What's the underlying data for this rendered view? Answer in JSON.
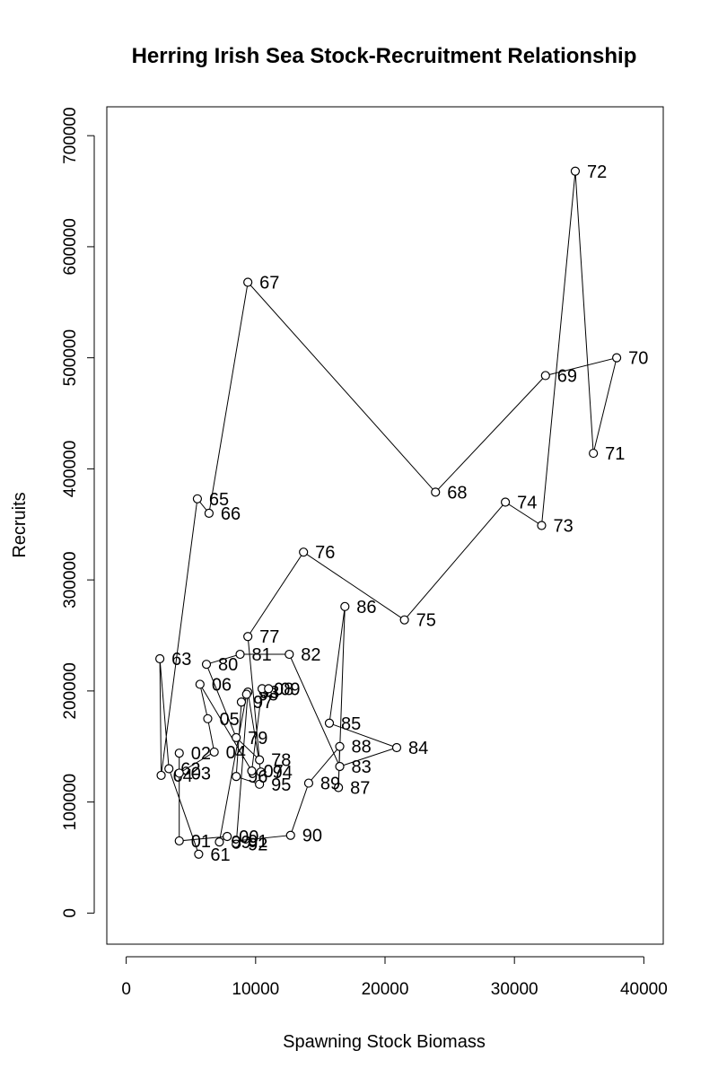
{
  "chart_data": {
    "type": "scatter",
    "title": "Herring Irish Sea Stock-Recruitment Relationship",
    "xlabel": "Spawning Stock Biomass",
    "ylabel": "Recruits",
    "xlim": [
      -1500,
      41500
    ],
    "ylim": [
      -28000,
      726000
    ],
    "x_ticks": [
      0,
      10000,
      20000,
      30000,
      40000
    ],
    "x_tick_labels": [
      "0",
      "10000",
      "20000",
      "30000",
      "40000"
    ],
    "y_ticks": [
      0,
      100000,
      200000,
      300000,
      400000,
      500000,
      600000,
      700000
    ],
    "y_tick_labels": [
      "0",
      "100000",
      "200000",
      "300000",
      "400000",
      "500000",
      "600000",
      "700000"
    ],
    "grid": false,
    "connected": true,
    "point_marker": "open-circle",
    "points": [
      {
        "label": "61",
        "x": 5600,
        "y": 53000
      },
      {
        "label": "62",
        "x": 3300,
        "y": 130000
      },
      {
        "label": "63",
        "x": 2600,
        "y": 229000
      },
      {
        "label": "64",
        "x": 2700,
        "y": 124000
      },
      {
        "label": "65",
        "x": 5500,
        "y": 373000
      },
      {
        "label": "66",
        "x": 6400,
        "y": 360000
      },
      {
        "label": "67",
        "x": 9400,
        "y": 568000
      },
      {
        "label": "68",
        "x": 23900,
        "y": 379000
      },
      {
        "label": "69",
        "x": 32400,
        "y": 484000
      },
      {
        "label": "70",
        "x": 37900,
        "y": 500000
      },
      {
        "label": "71",
        "x": 36100,
        "y": 414000
      },
      {
        "label": "72",
        "x": 34700,
        "y": 668000
      },
      {
        "label": "73",
        "x": 32100,
        "y": 349000
      },
      {
        "label": "74",
        "x": 29300,
        "y": 370000
      },
      {
        "label": "75",
        "x": 21500,
        "y": 264000
      },
      {
        "label": "76",
        "x": 13700,
        "y": 325000
      },
      {
        "label": "77",
        "x": 9400,
        "y": 249000
      },
      {
        "label": "78",
        "x": 10300,
        "y": 138000
      },
      {
        "label": "79",
        "x": 8500,
        "y": 158000
      },
      {
        "label": "80",
        "x": 6200,
        "y": 224000
      },
      {
        "label": "81",
        "x": 8800,
        "y": 233000
      },
      {
        "label": "82",
        "x": 12600,
        "y": 233000
      },
      {
        "label": "83",
        "x": 16500,
        "y": 132000
      },
      {
        "label": "84",
        "x": 20900,
        "y": 149000
      },
      {
        "label": "85",
        "x": 15700,
        "y": 171000
      },
      {
        "label": "86",
        "x": 16900,
        "y": 276000
      },
      {
        "label": "87",
        "x": 16400,
        "y": 113000
      },
      {
        "label": "88",
        "x": 16500,
        "y": 150000
      },
      {
        "label": "89",
        "x": 14100,
        "y": 117000
      },
      {
        "label": "90",
        "x": 12700,
        "y": 70000
      },
      {
        "label": "91",
        "x": 8500,
        "y": 65000
      },
      {
        "label": "92",
        "x": 8500,
        "y": 62000
      },
      {
        "label": "93",
        "x": 9400,
        "y": 199000
      },
      {
        "label": "94",
        "x": 10400,
        "y": 127000
      },
      {
        "label": "95",
        "x": 10300,
        "y": 116000
      },
      {
        "label": "96",
        "x": 8500,
        "y": 123000
      },
      {
        "label": "97",
        "x": 8900,
        "y": 190000
      },
      {
        "label": "98",
        "x": 9300,
        "y": 197000
      },
      {
        "label": "99",
        "x": 7200,
        "y": 64000
      },
      {
        "label": "00",
        "x": 7800,
        "y": 69000
      },
      {
        "label": "01",
        "x": 4100,
        "y": 65000
      },
      {
        "label": "02",
        "x": 4100,
        "y": 144000
      },
      {
        "label": "03",
        "x": 4100,
        "y": 126000
      },
      {
        "label": "04",
        "x": 6800,
        "y": 145000
      },
      {
        "label": "05",
        "x": 6300,
        "y": 175000
      },
      {
        "label": "06",
        "x": 5700,
        "y": 206000
      },
      {
        "label": "07",
        "x": 9700,
        "y": 128000
      },
      {
        "label": "08",
        "x": 10500,
        "y": 202000
      },
      {
        "label": "09",
        "x": 11000,
        "y": 202000
      }
    ]
  }
}
